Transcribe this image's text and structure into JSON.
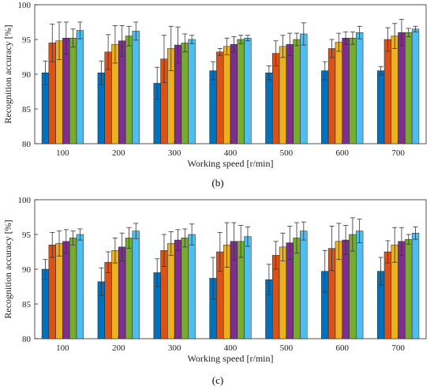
{
  "series_colors": [
    "#0072BD",
    "#D95319",
    "#EDB120",
    "#7E2F8E",
    "#77AC30",
    "#4DBEEE"
  ],
  "chart_data": [
    {
      "type": "bar",
      "caption": "(b)",
      "xlabel": "Working speed [r/min]",
      "ylabel": "Recognition accuracy [%]",
      "ylim": [
        80,
        100
      ],
      "yticks": [
        80,
        85,
        90,
        95,
        100
      ],
      "grid": false,
      "error_bars": true,
      "categories": [
        "100",
        "200",
        "300",
        "400",
        "500",
        "600",
        "700"
      ],
      "series": [
        {
          "values": [
            90.2,
            90.2,
            88.7,
            90.5,
            90.2,
            90.5,
            90.5
          ],
          "errors": [
            1.7,
            1.7,
            2.3,
            1.3,
            1.0,
            1.3,
            0.6
          ]
        },
        {
          "values": [
            94.5,
            93.2,
            92.2,
            93.2,
            93.0,
            93.7,
            95.0
          ],
          "errors": [
            2.7,
            2.5,
            3.4,
            0.5,
            1.8,
            1.3,
            1.7
          ]
        },
        {
          "values": [
            94.8,
            94.3,
            93.7,
            94.0,
            94.0,
            94.6,
            95.5
          ],
          "errors": [
            2.7,
            2.7,
            3.2,
            1.2,
            1.6,
            1.3,
            1.8
          ]
        },
        {
          "values": [
            95.2,
            94.8,
            94.2,
            94.3,
            94.3,
            95.2,
            96.0
          ],
          "errors": [
            2.3,
            2.2,
            2.6,
            1.1,
            1.6,
            0.9,
            1.9
          ]
        },
        {
          "values": [
            95.2,
            95.5,
            94.5,
            95.0,
            95.0,
            95.2,
            96.0
          ],
          "errors": [
            1.3,
            1.4,
            1.3,
            0.6,
            0.9,
            0.9,
            0.6
          ]
        },
        {
          "values": [
            96.3,
            96.2,
            95.0,
            95.2,
            95.8,
            96.0,
            96.5
          ],
          "errors": [
            1.2,
            1.3,
            0.6,
            0.4,
            1.6,
            0.9,
            0.4
          ]
        }
      ]
    },
    {
      "type": "bar",
      "caption": "(c)",
      "xlabel": "Working speed [r/min]",
      "ylabel": "Recognition accuracy [%]",
      "ylim": [
        80,
        100
      ],
      "yticks": [
        80,
        85,
        90,
        95,
        100
      ],
      "grid": false,
      "error_bars": true,
      "categories": [
        "100",
        "200",
        "300",
        "400",
        "500",
        "600",
        "700"
      ],
      "series": [
        {
          "values": [
            90.0,
            88.2,
            89.5,
            88.7,
            88.5,
            89.7,
            89.7
          ],
          "errors": [
            1.4,
            2.0,
            2.0,
            3.0,
            2.2,
            3.0,
            2.0
          ]
        },
        {
          "values": [
            93.5,
            91.0,
            92.7,
            92.5,
            92.0,
            93.0,
            92.5
          ],
          "errors": [
            1.8,
            1.5,
            2.3,
            2.8,
            2.0,
            3.2,
            1.6
          ]
        },
        {
          "values": [
            93.7,
            92.7,
            93.7,
            93.5,
            93.2,
            94.0,
            93.5
          ],
          "errors": [
            1.8,
            1.8,
            1.7,
            3.2,
            2.0,
            2.6,
            2.5
          ]
        },
        {
          "values": [
            94.0,
            93.2,
            94.2,
            94.0,
            93.8,
            94.2,
            94.0
          ],
          "errors": [
            1.7,
            2.0,
            1.5,
            2.7,
            2.4,
            2.1,
            2.0
          ]
        },
        {
          "values": [
            94.5,
            94.5,
            94.5,
            94.0,
            94.5,
            95.0,
            94.3
          ],
          "errors": [
            1.0,
            1.5,
            1.3,
            2.3,
            2.2,
            2.4,
            0.7
          ]
        },
        {
          "values": [
            95.0,
            95.5,
            95.0,
            94.7,
            95.5,
            95.5,
            95.2
          ],
          "errors": [
            0.8,
            1.1,
            1.5,
            1.4,
            1.3,
            1.7,
            0.9
          ]
        }
      ]
    }
  ]
}
